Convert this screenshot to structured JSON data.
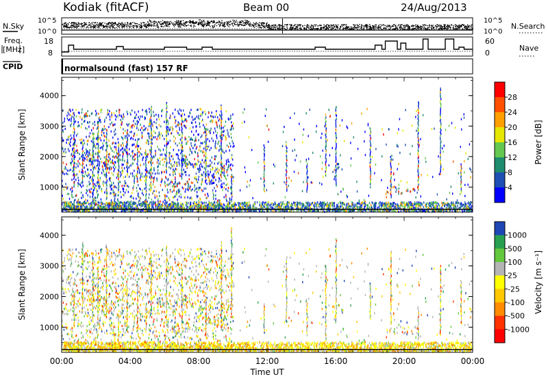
{
  "header": {
    "station": "Kodiak (fitACF)",
    "beam": "Beam 00",
    "date": "24/Aug/2013"
  },
  "noise_panel": {
    "left_label": "N.Sky",
    "right_label": "N.Search",
    "left_ticks": [
      "10^5",
      "10^0"
    ],
    "right_ticks": [
      "10^5",
      "10^0"
    ]
  },
  "freq_panel": {
    "left_label_top": "Freq.",
    "left_label_bottom": "[MHz]",
    "right_label": "Nave",
    "left_ticks": [
      "18",
      "8"
    ],
    "right_ticks": [
      "60",
      "0"
    ]
  },
  "cpid_panel": {
    "label": "CPID",
    "text": "normalsound (fast) 157 RF"
  },
  "chart_data": [
    {
      "type": "heatmap",
      "name": "Power",
      "ylabel": "Slant Range [km]",
      "ylim": [
        180,
        4600
      ],
      "yticks": [
        "1000",
        "2000",
        "3000",
        "4000"
      ],
      "colorbar_label": "Power [dB]",
      "colorbar_ticks": [
        "4",
        "8",
        "12",
        "16",
        "20",
        "24",
        "28"
      ],
      "colors": [
        "#0000ff",
        "#1e50b4",
        "#1e8c6e",
        "#64c850",
        "#e6e600",
        "#ffa000",
        "#ff5000",
        "#ff0000"
      ],
      "features": [
        {
          "t0": 1.0,
          "t1": 2.2,
          "r0": 1900,
          "r1": 2250,
          "level": "mixed"
        },
        {
          "t0": 2.2,
          "t1": 3.0,
          "r0": 1550,
          "r1": 2050,
          "level": "high"
        },
        {
          "t0": 3.0,
          "t1": 4.3,
          "r0": 2000,
          "r1": 2200,
          "level": "high"
        },
        {
          "t0": 5.5,
          "t1": 7.8,
          "r0": 1700,
          "r1": 2000,
          "level": "mixed"
        },
        {
          "t0": 5.9,
          "t1": 7.9,
          "r0": 850,
          "r1": 1200,
          "level": "high"
        },
        {
          "t0": 7.8,
          "t1": 9.5,
          "r0": 1100,
          "r1": 1800,
          "level": "mixed"
        },
        {
          "t0": 18.8,
          "t1": 20.8,
          "r0": 800,
          "r1": 1050,
          "level": "high"
        },
        {
          "t0": 15.8,
          "t1": 16.4,
          "r0": 1500,
          "r1": 1800,
          "level": "low"
        }
      ]
    },
    {
      "type": "heatmap",
      "name": "Velocity",
      "ylabel": "Slant Range [km]",
      "ylim": [
        180,
        4600
      ],
      "yticks": [
        "1000",
        "2000",
        "3000",
        "4000"
      ],
      "colorbar_label": "Velocity [m s⁻¹]",
      "colorbar_ticks": [
        "1000",
        "500",
        "100",
        "25",
        "-25",
        "-100",
        "-500",
        "-1000"
      ],
      "colors": [
        "#1e46b4",
        "#28a050",
        "#64c83c",
        "#b4b4b4",
        "#ffff00",
        "#ffc800",
        "#ff8c00",
        "#ff3200",
        "#ff0000"
      ],
      "xlabel": "Time UT",
      "xticks": [
        "00:00",
        "04:00",
        "08:00",
        "12:00",
        "16:00",
        "20:00",
        "00:00"
      ]
    }
  ]
}
